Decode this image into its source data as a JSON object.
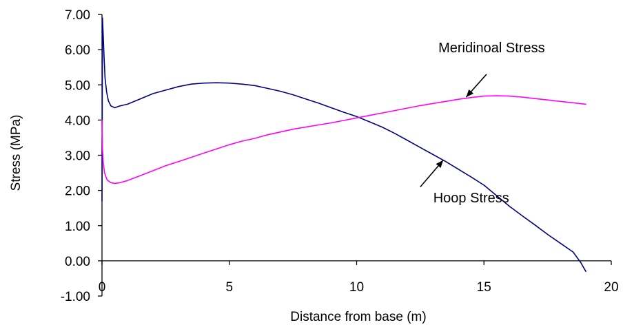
{
  "chart_data": {
    "type": "line",
    "title": "",
    "xlabel": "Distance from base (m)",
    "ylabel": "Stress (MPa)",
    "xlim": [
      0,
      20
    ],
    "ylim": [
      -1,
      7
    ],
    "x_ticks": [
      0,
      5,
      10,
      15,
      20
    ],
    "x_tick_labels": [
      "0",
      "5",
      "10",
      "15",
      "20"
    ],
    "y_ticks": [
      -1,
      0,
      1,
      2,
      3,
      4,
      5,
      6,
      7
    ],
    "y_tick_labels": [
      "-1.00",
      "0.00",
      "1.00",
      "2.00",
      "3.00",
      "4.00",
      "5.00",
      "6.00",
      "7.00"
    ],
    "grid": false,
    "legend": "none",
    "series": [
      {
        "color": "#000080",
        "x": [
          0.0,
          0.02,
          0.05,
          0.08,
          0.12,
          0.18,
          0.25,
          0.35,
          0.5,
          0.7,
          1.0,
          1.5,
          2.0,
          2.5,
          3.0,
          3.5,
          4.0,
          4.5,
          5.0,
          5.5,
          6.0,
          6.5,
          7.0,
          7.5,
          8.0,
          8.5,
          9.0,
          9.5,
          10.0,
          10.5,
          11.0,
          11.5,
          12.0,
          12.5,
          13.0,
          13.5,
          14.0,
          14.5,
          15.0,
          15.5,
          16.0,
          16.5,
          17.0,
          17.5,
          18.0,
          18.5,
          18.8,
          19.0
        ],
        "y": [
          1.7,
          6.9,
          6.4,
          5.8,
          5.2,
          4.8,
          4.55,
          4.4,
          4.35,
          4.4,
          4.45,
          4.6,
          4.75,
          4.85,
          4.95,
          5.02,
          5.05,
          5.06,
          5.05,
          5.02,
          4.98,
          4.9,
          4.82,
          4.72,
          4.6,
          4.48,
          4.35,
          4.22,
          4.1,
          3.95,
          3.8,
          3.62,
          3.42,
          3.22,
          3.02,
          2.82,
          2.6,
          2.38,
          2.15,
          1.85,
          1.55,
          1.28,
          1.02,
          0.75,
          0.5,
          0.25,
          -0.05,
          -0.3
        ]
      },
      {
        "color": "#ff00ff",
        "x": [
          0.0,
          0.02,
          0.05,
          0.1,
          0.2,
          0.35,
          0.5,
          0.7,
          1.0,
          1.5,
          2.0,
          2.5,
          3.0,
          3.5,
          4.0,
          4.5,
          5.0,
          5.5,
          6.0,
          6.5,
          7.0,
          7.5,
          8.0,
          8.5,
          9.0,
          9.5,
          10.0,
          10.5,
          11.0,
          11.5,
          12.0,
          12.5,
          13.0,
          13.5,
          14.0,
          14.5,
          15.0,
          15.5,
          16.0,
          16.5,
          17.0,
          17.5,
          18.0,
          18.5,
          19.0
        ],
        "y": [
          4.0,
          3.2,
          2.8,
          2.5,
          2.3,
          2.22,
          2.2,
          2.22,
          2.28,
          2.42,
          2.56,
          2.7,
          2.82,
          2.94,
          3.06,
          3.18,
          3.3,
          3.4,
          3.48,
          3.58,
          3.66,
          3.74,
          3.8,
          3.86,
          3.92,
          3.99,
          4.06,
          4.13,
          4.2,
          4.27,
          4.34,
          4.41,
          4.47,
          4.53,
          4.59,
          4.64,
          4.68,
          4.69,
          4.68,
          4.65,
          4.61,
          4.57,
          4.53,
          4.49,
          4.45
        ]
      }
    ],
    "annotations": [
      {
        "text": "Meridinoal  Stress",
        "x": 15.3,
        "y": 5.92,
        "arrow_from": [
          15.1,
          5.3
        ],
        "arrow_to": [
          14.3,
          4.65
        ]
      },
      {
        "text": "Hoop Stress",
        "x": 14.5,
        "y": 1.66,
        "arrow_from": [
          12.5,
          2.1
        ],
        "arrow_to": [
          13.4,
          2.86
        ]
      }
    ]
  }
}
